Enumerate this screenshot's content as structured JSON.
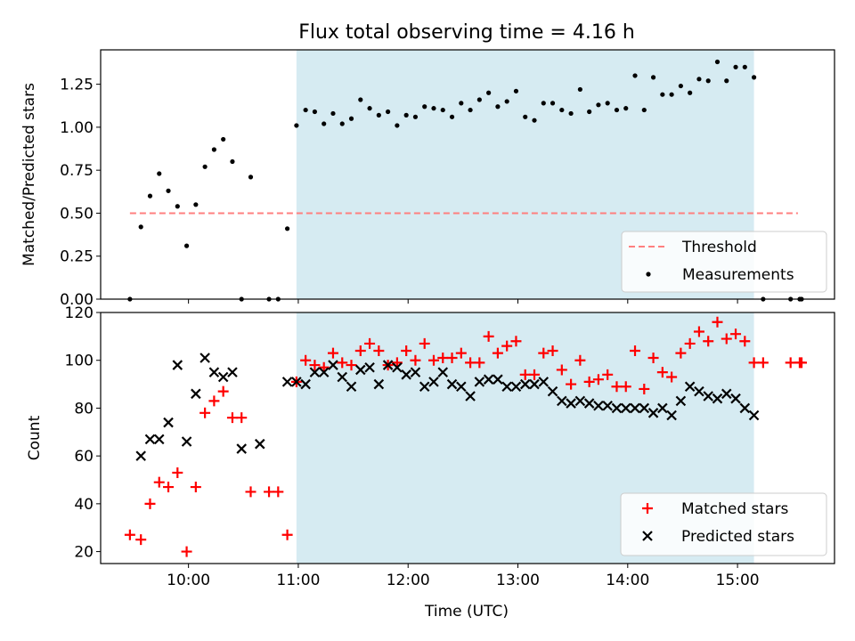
{
  "title": "Flux total observing time = 4.16 h",
  "colors": {
    "threshold": "#ff7f7f",
    "measure": "#000000",
    "matched": "#ff0000",
    "predicted": "#000000",
    "span": "#add8e6"
  },
  "chart_data": [
    {
      "type": "scatter",
      "ylabel": "Matched/Predicted stars",
      "ylim": [
        0,
        1.45
      ],
      "xlim": [
        "09:12",
        "15:53"
      ],
      "yticks": [
        "0.00",
        "0.25",
        "0.50",
        "0.75",
        "1.00",
        "1.25"
      ],
      "highlight_span": [
        "10:59",
        "15:09"
      ],
      "legend_position": "lower right",
      "grid": false,
      "threshold": {
        "name": "Threshold",
        "value": 0.5,
        "x_range": [
          "09:28",
          "15:33"
        ]
      },
      "series": [
        {
          "name": "Measurements",
          "marker": "dot",
          "x": [
            "09:28",
            "09:34",
            "09:39",
            "09:44",
            "09:49",
            "09:54",
            "09:59",
            "10:04",
            "10:09",
            "10:14",
            "10:19",
            "10:24",
            "10:29",
            "10:34",
            "10:44",
            "10:49",
            "10:54",
            "10:59",
            "11:04",
            "11:09",
            "11:14",
            "11:19",
            "11:24",
            "11:29",
            "11:34",
            "11:39",
            "11:44",
            "11:49",
            "11:54",
            "11:59",
            "12:04",
            "12:09",
            "12:14",
            "12:19",
            "12:24",
            "12:29",
            "12:34",
            "12:39",
            "12:44",
            "12:49",
            "12:54",
            "12:59",
            "13:04",
            "13:09",
            "13:14",
            "13:19",
            "13:24",
            "13:29",
            "13:34",
            "13:39",
            "13:44",
            "13:49",
            "13:54",
            "13:59",
            "14:04",
            "14:09",
            "14:14",
            "14:19",
            "14:24",
            "14:29",
            "14:34",
            "14:39",
            "14:44",
            "14:49",
            "14:54",
            "14:59",
            "15:04",
            "15:09",
            "15:14",
            "15:29",
            "15:34",
            "15:35"
          ],
          "y": [
            0.0,
            0.42,
            0.6,
            0.73,
            0.63,
            0.54,
            0.31,
            0.55,
            0.77,
            0.87,
            0.93,
            0.8,
            0.0,
            0.71,
            0.0,
            0.0,
            0.41,
            1.01,
            1.1,
            1.09,
            1.02,
            1.08,
            1.02,
            1.05,
            1.16,
            1.11,
            1.07,
            1.09,
            1.01,
            1.07,
            1.06,
            1.12,
            1.11,
            1.1,
            1.06,
            1.14,
            1.1,
            1.16,
            1.2,
            1.12,
            1.15,
            1.21,
            1.06,
            1.04,
            1.14,
            1.14,
            1.1,
            1.08,
            1.22,
            1.09,
            1.13,
            1.14,
            1.1,
            1.11,
            1.3,
            1.1,
            1.29,
            1.19,
            1.19,
            1.24,
            1.2,
            1.28,
            1.27,
            1.38,
            1.27,
            1.35,
            1.35,
            1.29,
            0.0,
            0.0,
            0.0,
            0.0
          ]
        }
      ]
    },
    {
      "type": "scatter",
      "xlabel": "Time (UTC)",
      "ylabel": "Count",
      "ylim": [
        15,
        120
      ],
      "xlim": [
        "09:12",
        "15:53"
      ],
      "xticks": [
        "10:00",
        "11:00",
        "12:00",
        "13:00",
        "14:00",
        "15:00"
      ],
      "yticks": [
        "20",
        "40",
        "60",
        "80",
        "100",
        "120"
      ],
      "highlight_span": [
        "10:59",
        "15:09"
      ],
      "legend_position": "lower right",
      "grid": false,
      "series": [
        {
          "name": "Matched stars",
          "marker": "plus",
          "x": [
            "09:28",
            "09:34",
            "09:39",
            "09:44",
            "09:49",
            "09:54",
            "09:59",
            "10:04",
            "10:09",
            "10:14",
            "10:19",
            "10:24",
            "10:29",
            "10:34",
            "10:44",
            "10:49",
            "10:54",
            "10:59",
            "11:04",
            "11:09",
            "11:14",
            "11:19",
            "11:24",
            "11:29",
            "11:34",
            "11:39",
            "11:44",
            "11:49",
            "11:54",
            "11:59",
            "12:04",
            "12:09",
            "12:14",
            "12:19",
            "12:24",
            "12:29",
            "12:34",
            "12:39",
            "12:44",
            "12:49",
            "12:54",
            "12:59",
            "13:04",
            "13:09",
            "13:14",
            "13:19",
            "13:24",
            "13:29",
            "13:34",
            "13:39",
            "13:44",
            "13:49",
            "13:54",
            "13:59",
            "14:04",
            "14:09",
            "14:14",
            "14:19",
            "14:24",
            "14:29",
            "14:34",
            "14:39",
            "14:44",
            "14:49",
            "14:54",
            "14:59",
            "15:04",
            "15:09",
            "15:14",
            "15:29",
            "15:34",
            "15:35"
          ],
          "y": [
            27,
            25,
            40,
            49,
            47,
            53,
            20,
            47,
            78,
            83,
            87,
            76,
            76,
            45,
            45,
            45,
            27,
            91,
            100,
            98,
            97,
            103,
            99,
            98,
            104,
            107,
            104,
            98,
            99,
            104,
            100,
            107,
            100,
            101,
            101,
            103,
            99,
            99,
            110,
            103,
            106,
            108,
            94,
            94,
            103,
            104,
            96,
            90,
            100,
            91,
            92,
            94,
            89,
            89,
            104,
            88,
            101,
            95,
            93,
            103,
            107,
            112,
            108,
            116,
            109,
            111,
            108,
            99,
            99,
            99,
            99,
            99
          ]
        },
        {
          "name": "Predicted stars",
          "marker": "x",
          "x": [
            "09:34",
            "09:39",
            "09:44",
            "09:49",
            "09:54",
            "09:59",
            "10:04",
            "10:09",
            "10:14",
            "10:19",
            "10:24",
            "10:29",
            "10:39",
            "10:54",
            "10:59",
            "11:04",
            "11:09",
            "11:14",
            "11:19",
            "11:24",
            "11:29",
            "11:34",
            "11:39",
            "11:44",
            "11:49",
            "11:54",
            "11:59",
            "12:04",
            "12:09",
            "12:14",
            "12:19",
            "12:24",
            "12:29",
            "12:34",
            "12:39",
            "12:44",
            "12:49",
            "12:54",
            "12:59",
            "13:04",
            "13:09",
            "13:14",
            "13:19",
            "13:24",
            "13:29",
            "13:34",
            "13:39",
            "13:44",
            "13:49",
            "13:54",
            "13:59",
            "14:04",
            "14:09",
            "14:14",
            "14:19",
            "14:24",
            "14:29",
            "14:34",
            "14:39",
            "14:44",
            "14:49",
            "14:54",
            "14:59",
            "15:04",
            "15:09"
          ],
          "y": [
            60,
            67,
            67,
            74,
            98,
            66,
            86,
            101,
            95,
            93,
            95,
            63,
            65,
            91,
            91,
            90,
            95,
            95,
            98,
            93,
            89,
            96,
            97,
            90,
            98,
            97,
            94,
            95,
            89,
            91,
            95,
            90,
            89,
            85,
            91,
            92,
            92,
            89,
            89,
            90,
            90,
            91,
            87,
            83,
            82,
            83,
            82,
            81,
            81,
            80,
            80,
            80,
            80,
            78,
            80,
            77,
            83,
            89,
            87,
            85,
            84,
            86,
            84,
            80,
            77
          ]
        }
      ]
    }
  ]
}
